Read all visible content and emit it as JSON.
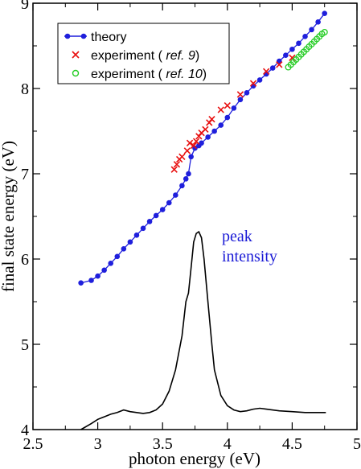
{
  "chart_data": {
    "type": "scatter",
    "xlabel": "photon energy (eV)",
    "ylabel": "final state energy (eV)",
    "xlim": [
      2.5,
      5
    ],
    "ylim": [
      4,
      9
    ],
    "x_ticks": [
      "2.5",
      "3",
      "3.5",
      "4",
      "4.5",
      "5"
    ],
    "y_ticks": [
      "4",
      "5",
      "6",
      "7",
      "8",
      "9"
    ],
    "grid": false,
    "legend_position": "top-left",
    "legend": {
      "theory": "theory",
      "exp9_prefix": "experiment ( ",
      "exp9_ref": "ref. 9",
      "exp9_suffix": ")",
      "exp10_prefix": "experiment ( ",
      "exp10_ref": "ref. 10",
      "exp10_suffix": ")"
    },
    "annotation": {
      "line1": "peak",
      "line2": "intensity"
    },
    "colors": {
      "theory": "#1f1fdc",
      "exp9": "#e81010",
      "exp10": "#22cc22",
      "curve": "#000000"
    },
    "series": [
      {
        "name": "theory",
        "style": "line-dots",
        "points": [
          [
            2.87,
            5.72
          ],
          [
            2.95,
            5.75
          ],
          [
            3.0,
            5.8
          ],
          [
            3.05,
            5.87
          ],
          [
            3.1,
            5.95
          ],
          [
            3.15,
            6.03
          ],
          [
            3.2,
            6.12
          ],
          [
            3.25,
            6.2
          ],
          [
            3.3,
            6.28
          ],
          [
            3.35,
            6.36
          ],
          [
            3.4,
            6.44
          ],
          [
            3.45,
            6.51
          ],
          [
            3.5,
            6.58
          ],
          [
            3.55,
            6.66
          ],
          [
            3.6,
            6.75
          ],
          [
            3.65,
            6.86
          ],
          [
            3.68,
            6.94
          ],
          [
            3.7,
            7.0
          ],
          [
            3.72,
            7.2
          ],
          [
            3.75,
            7.3
          ],
          [
            3.78,
            7.33
          ],
          [
            3.8,
            7.36
          ],
          [
            3.85,
            7.43
          ],
          [
            3.9,
            7.5
          ],
          [
            3.95,
            7.57
          ],
          [
            4.0,
            7.66
          ],
          [
            4.05,
            7.77
          ],
          [
            4.1,
            7.87
          ],
          [
            4.15,
            7.95
          ],
          [
            4.2,
            8.03
          ],
          [
            4.25,
            8.1
          ],
          [
            4.3,
            8.17
          ],
          [
            4.35,
            8.24
          ],
          [
            4.4,
            8.32
          ],
          [
            4.45,
            8.39
          ],
          [
            4.5,
            8.46
          ],
          [
            4.55,
            8.53
          ],
          [
            4.6,
            8.61
          ],
          [
            4.65,
            8.69
          ],
          [
            4.7,
            8.78
          ],
          [
            4.75,
            8.88
          ]
        ]
      },
      {
        "name": "experiment (ref. 9)",
        "style": "x",
        "points": [
          [
            3.59,
            7.05
          ],
          [
            3.61,
            7.11
          ],
          [
            3.63,
            7.17
          ],
          [
            3.65,
            7.2
          ],
          [
            3.69,
            7.27
          ],
          [
            3.71,
            7.36
          ],
          [
            3.74,
            7.33
          ],
          [
            3.76,
            7.38
          ],
          [
            3.78,
            7.44
          ],
          [
            3.8,
            7.48
          ],
          [
            3.83,
            7.52
          ],
          [
            3.86,
            7.6
          ],
          [
            3.88,
            7.64
          ],
          [
            3.95,
            7.75
          ],
          [
            4.0,
            7.8
          ],
          [
            4.1,
            7.93
          ],
          [
            4.2,
            8.06
          ],
          [
            4.3,
            8.2
          ],
          [
            4.4,
            8.28
          ],
          [
            4.5,
            8.36
          ]
        ]
      },
      {
        "name": "experiment (ref. 10)",
        "style": "circle",
        "points": [
          [
            4.47,
            8.25
          ],
          [
            4.49,
            8.28
          ],
          [
            4.51,
            8.31
          ],
          [
            4.53,
            8.34
          ],
          [
            4.55,
            8.37
          ],
          [
            4.57,
            8.4
          ],
          [
            4.59,
            8.43
          ],
          [
            4.61,
            8.46
          ],
          [
            4.63,
            8.49
          ],
          [
            4.65,
            8.52
          ],
          [
            4.67,
            8.55
          ],
          [
            4.69,
            8.58
          ],
          [
            4.71,
            8.61
          ],
          [
            4.73,
            8.64
          ],
          [
            4.75,
            8.66
          ]
        ]
      },
      {
        "name": "peak intensity",
        "style": "line",
        "points": [
          [
            2.87,
            4.0
          ],
          [
            2.95,
            4.07
          ],
          [
            3.0,
            4.12
          ],
          [
            3.05,
            4.15
          ],
          [
            3.1,
            4.18
          ],
          [
            3.15,
            4.2
          ],
          [
            3.2,
            4.23
          ],
          [
            3.25,
            4.21
          ],
          [
            3.3,
            4.2
          ],
          [
            3.35,
            4.19
          ],
          [
            3.4,
            4.2
          ],
          [
            3.45,
            4.23
          ],
          [
            3.5,
            4.3
          ],
          [
            3.55,
            4.45
          ],
          [
            3.6,
            4.7
          ],
          [
            3.65,
            5.1
          ],
          [
            3.68,
            5.5
          ],
          [
            3.7,
            5.6
          ],
          [
            3.72,
            5.9
          ],
          [
            3.74,
            6.2
          ],
          [
            3.76,
            6.3
          ],
          [
            3.78,
            6.32
          ],
          [
            3.8,
            6.25
          ],
          [
            3.82,
            6.0
          ],
          [
            3.85,
            5.5
          ],
          [
            3.88,
            5.0
          ],
          [
            3.9,
            4.7
          ],
          [
            3.95,
            4.4
          ],
          [
            4.0,
            4.28
          ],
          [
            4.05,
            4.23
          ],
          [
            4.1,
            4.21
          ],
          [
            4.15,
            4.22
          ],
          [
            4.2,
            4.24
          ],
          [
            4.25,
            4.25
          ],
          [
            4.3,
            4.24
          ],
          [
            4.4,
            4.22
          ],
          [
            4.5,
            4.21
          ],
          [
            4.6,
            4.2
          ],
          [
            4.76,
            4.2
          ]
        ]
      }
    ]
  }
}
